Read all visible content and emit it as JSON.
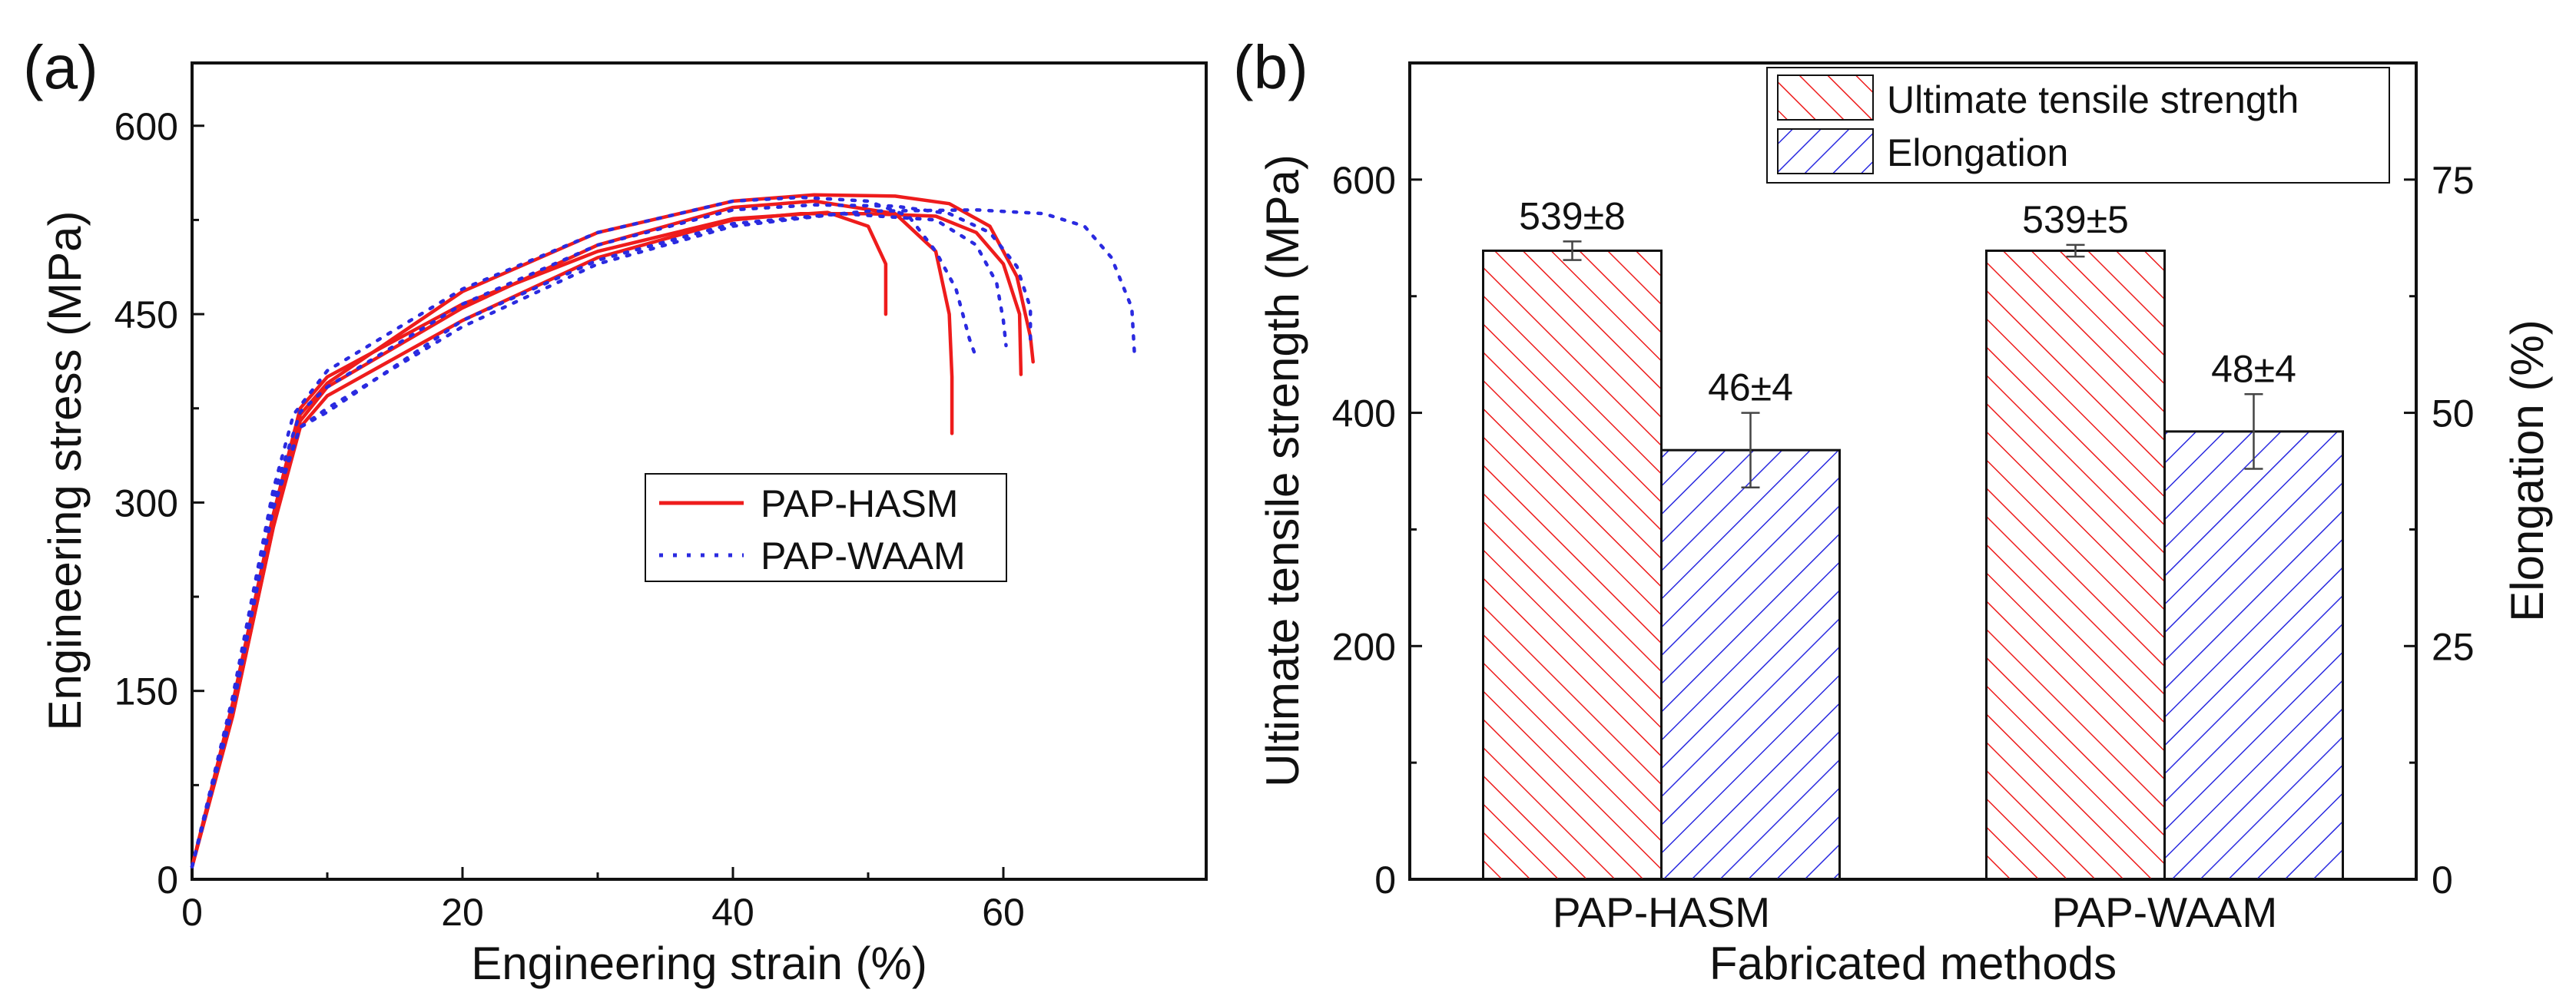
{
  "chart_data": [
    {
      "panel_label": "(a)",
      "type": "line",
      "xlabel": "Engineering strain (%)",
      "ylabel": "Engineering stress (MPa)",
      "xlim": [
        0,
        75
      ],
      "ylim": [
        0,
        650
      ],
      "x_ticks": [
        0,
        20,
        40,
        60
      ],
      "y_ticks": [
        0,
        150,
        300,
        450,
        600
      ],
      "legend": {
        "placement": "center-right",
        "entries": [
          {
            "label": "PAP-HASM",
            "color": "#ee1c1c",
            "style": "solid"
          },
          {
            "label": "PAP-WAAM",
            "color": "#2a2ae0",
            "style": "dotted"
          }
        ]
      },
      "series": [
        {
          "name": "PAP-HASM",
          "color": "#ee1c1c",
          "style": "solid",
          "points": [
            [
              0,
              10
            ],
            [
              3,
              140
            ],
            [
              6,
              290
            ],
            [
              8,
              375
            ],
            [
              10,
              400
            ],
            [
              20,
              458
            ],
            [
              30,
              500
            ],
            [
              40,
              526
            ],
            [
              47,
              531
            ],
            [
              50,
              520
            ],
            [
              51.3,
              490
            ],
            [
              51.3,
              450
            ]
          ]
        },
        {
          "name": "PAP-HASM",
          "color": "#ee1c1c",
          "style": "solid",
          "points": [
            [
              0,
              10
            ],
            [
              3,
              130
            ],
            [
              6,
              280
            ],
            [
              8,
              365
            ],
            [
              10,
              392
            ],
            [
              20,
              455
            ],
            [
              30,
              505
            ],
            [
              40,
              535
            ],
            [
              46,
              540
            ],
            [
              52,
              530
            ],
            [
              55,
              500
            ],
            [
              56,
              450
            ],
            [
              56.2,
              400
            ],
            [
              56.2,
              355
            ]
          ]
        },
        {
          "name": "PAP-HASM",
          "color": "#ee1c1c",
          "style": "solid",
          "points": [
            [
              0,
              10
            ],
            [
              3,
              135
            ],
            [
              6,
              290
            ],
            [
              8,
              370
            ],
            [
              10,
              395
            ],
            [
              20,
              468
            ],
            [
              30,
              515
            ],
            [
              40,
              540
            ],
            [
              46,
              545
            ],
            [
              52,
              544
            ],
            [
              56,
              538
            ],
            [
              59,
              520
            ],
            [
              61,
              480
            ],
            [
              62,
              432
            ],
            [
              62.2,
              412
            ]
          ]
        },
        {
          "name": "PAP-HASM",
          "color": "#ee1c1c",
          "style": "solid",
          "points": [
            [
              0,
              10
            ],
            [
              3,
              130
            ],
            [
              6,
              280
            ],
            [
              8,
              360
            ],
            [
              10,
              385
            ],
            [
              20,
              445
            ],
            [
              30,
              495
            ],
            [
              40,
              525
            ],
            [
              45,
              530
            ],
            [
              50,
              530
            ],
            [
              55,
              528
            ],
            [
              58,
              515
            ],
            [
              60,
              490
            ],
            [
              61.2,
              450
            ],
            [
              61.3,
              402
            ]
          ]
        },
        {
          "name": "PAP-WAAM",
          "color": "#2a2ae0",
          "style": "dotted",
          "points": [
            [
              0,
              10
            ],
            [
              3,
              145
            ],
            [
              6,
              310
            ],
            [
              7.5,
              370
            ],
            [
              10,
              405
            ],
            [
              20,
              470
            ],
            [
              30,
              515
            ],
            [
              40,
              540
            ],
            [
              45,
              543
            ],
            [
              50,
              540
            ],
            [
              53,
              528
            ],
            [
              55,
              500
            ],
            [
              56.5,
              470
            ],
            [
              57.5,
              430
            ],
            [
              58,
              415
            ]
          ]
        },
        {
          "name": "PAP-WAAM",
          "color": "#2a2ae0",
          "style": "dotted",
          "points": [
            [
              0,
              10
            ],
            [
              3,
              140
            ],
            [
              6,
              300
            ],
            [
              8,
              360
            ],
            [
              10,
              375
            ],
            [
              20,
              440
            ],
            [
              30,
              490
            ],
            [
              40,
              520
            ],
            [
              48,
              530
            ],
            [
              55,
              525
            ],
            [
              58,
              505
            ],
            [
              59.5,
              475
            ],
            [
              60,
              445
            ],
            [
              60.2,
              425
            ]
          ]
        },
        {
          "name": "PAP-WAAM",
          "color": "#2a2ae0",
          "style": "dotted",
          "points": [
            [
              0,
              10
            ],
            [
              3,
              140
            ],
            [
              6,
              305
            ],
            [
              8,
              372
            ],
            [
              10,
              392
            ],
            [
              20,
              458
            ],
            [
              30,
              505
            ],
            [
              40,
              533
            ],
            [
              46,
              537
            ],
            [
              52,
              536
            ],
            [
              56,
              530
            ],
            [
              59,
              515
            ],
            [
              61,
              488
            ],
            [
              62,
              455
            ],
            [
              62,
              425
            ]
          ]
        },
        {
          "name": "PAP-WAAM",
          "color": "#2a2ae0",
          "style": "dotted",
          "points": [
            [
              0,
              10
            ],
            [
              3,
              135
            ],
            [
              6,
              295
            ],
            [
              8,
              360
            ],
            [
              10,
              372
            ],
            [
              20,
              445
            ],
            [
              30,
              493
            ],
            [
              40,
              522
            ],
            [
              50,
              532
            ],
            [
              58,
              533
            ],
            [
              63,
              530
            ],
            [
              66,
              520
            ],
            [
              68,
              495
            ],
            [
              69.5,
              455
            ],
            [
              69.7,
              418
            ]
          ]
        }
      ]
    },
    {
      "panel_label": "(b)",
      "type": "bar",
      "xlabel": "Fabricated methods",
      "ylabel": "Ultimate tensile strength (MPa)",
      "ylabel_right": "Elongation (%)",
      "categories": [
        "PAP-HASM",
        "PAP-WAAM"
      ],
      "ylim": [
        0,
        700
      ],
      "ylim_right": [
        0,
        87.5
      ],
      "y_ticks": [
        0,
        200,
        400,
        600
      ],
      "y_ticks_right": [
        0,
        25,
        50,
        75
      ],
      "legend": {
        "placement": "top-right",
        "entries": [
          {
            "label": "Ultimate tensile strength",
            "color": "#ee1c1c",
            "pattern": "hatch"
          },
          {
            "label": "Elongation",
            "color": "#2a2ae0",
            "pattern": "hatch"
          }
        ]
      },
      "series": [
        {
          "name": "Ultimate tensile strength",
          "axis": "left",
          "color": "#ee1c1c",
          "values": [
            539,
            539
          ],
          "errors": [
            8,
            5
          ],
          "labels": [
            "539±8",
            "539±5"
          ]
        },
        {
          "name": "Elongation",
          "axis": "right",
          "color": "#2a2ae0",
          "values": [
            46,
            48
          ],
          "errors": [
            4,
            4
          ],
          "labels": [
            "46±4",
            "48±4"
          ]
        }
      ]
    }
  ]
}
